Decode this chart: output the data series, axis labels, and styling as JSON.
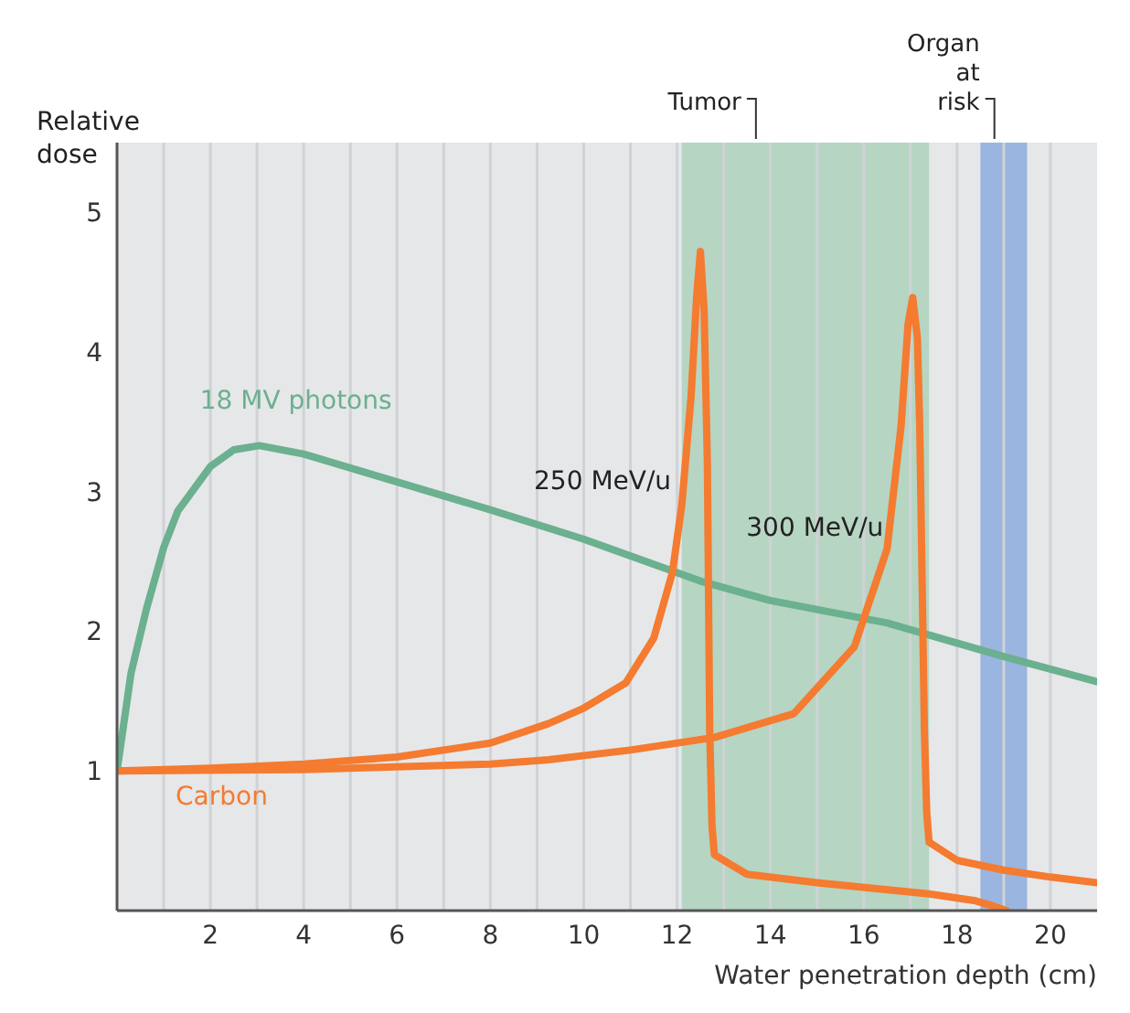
{
  "chart_data": {
    "type": "line",
    "xlabel": "Water penetration depth (cm)",
    "ylabel": "Relative dose",
    "xlim": [
      0,
      21
    ],
    "ylim": [
      0,
      5.5
    ],
    "xticks": [
      {
        "value": 1,
        "label": null
      },
      2,
      {
        "value": 3,
        "label": null
      },
      4,
      {
        "value": 5,
        "label": null
      },
      6,
      {
        "value": 7,
        "label": null
      },
      8,
      {
        "value": 9,
        "label": null
      },
      10,
      {
        "value": 11,
        "label": null
      },
      12,
      {
        "value": 13,
        "label": null
      },
      14,
      {
        "value": 15,
        "label": null
      },
      16,
      {
        "value": 17,
        "label": null
      },
      18,
      {
        "value": 19,
        "label": null
      },
      20
    ],
    "yticks": [
      1,
      2,
      3,
      4,
      5
    ],
    "grid": "x",
    "marker": "none",
    "line_style": "solid",
    "series": [
      {
        "name": "18 MV photons",
        "color": "#6bb08f",
        "x": [
          0,
          0.3,
          0.63,
          1,
          1.3,
          2,
          2.5,
          3.05,
          4,
          6,
          8,
          10,
          12.5,
          14,
          16.5,
          19,
          21
        ],
        "values": [
          1,
          1.7,
          2.16,
          2.6,
          2.86,
          3.18,
          3.3,
          3.33,
          3.27,
          3.07,
          2.87,
          2.66,
          2.36,
          2.22,
          2.06,
          1.82,
          1.64
        ]
      },
      {
        "name": "250 MeV/u",
        "color": "#f47b30",
        "x": [
          0,
          2,
          4,
          6,
          8,
          9.25,
          10,
          10.9,
          11.5,
          11.9,
          12.1,
          12.3,
          12.42,
          12.5,
          12.58,
          12.65,
          12.7,
          12.75,
          12.8,
          13.5,
          15,
          17.4,
          18.4,
          18.8,
          19.06
        ],
        "values": [
          1,
          1.02,
          1.05,
          1.1,
          1.2,
          1.34,
          1.45,
          1.63,
          1.95,
          2.42,
          2.9,
          3.68,
          4.4,
          4.72,
          4.3,
          3.2,
          1.28,
          0.6,
          0.4,
          0.26,
          0.2,
          0.12,
          0.07,
          0.03,
          0
        ]
      },
      {
        "name": "300 MeV/u",
        "color": "#f47b30",
        "x": [
          0,
          4,
          8,
          9.25,
          11,
          12.8,
          14.5,
          15.8,
          16.5,
          16.8,
          16.95,
          17.05,
          17.15,
          17.2,
          17.3,
          17.35,
          17.4,
          18,
          19,
          20,
          21
        ],
        "values": [
          1,
          1.01,
          1.05,
          1.08,
          1.15,
          1.24,
          1.41,
          1.89,
          2.59,
          3.47,
          4.2,
          4.39,
          4.1,
          3.47,
          1.28,
          0.7,
          0.49,
          0.36,
          0.29,
          0.24,
          0.2
        ]
      }
    ],
    "bands": [
      {
        "axis": "x",
        "from": 12.1,
        "to": 17.4,
        "label": "Tumor",
        "color": "#b6d5c3"
      },
      {
        "axis": "x",
        "from": 18.5,
        "to": 19.5,
        "label": "Organ at risk",
        "color": "#99b5e0"
      }
    ],
    "annotations": [
      "Carbon"
    ]
  }
}
